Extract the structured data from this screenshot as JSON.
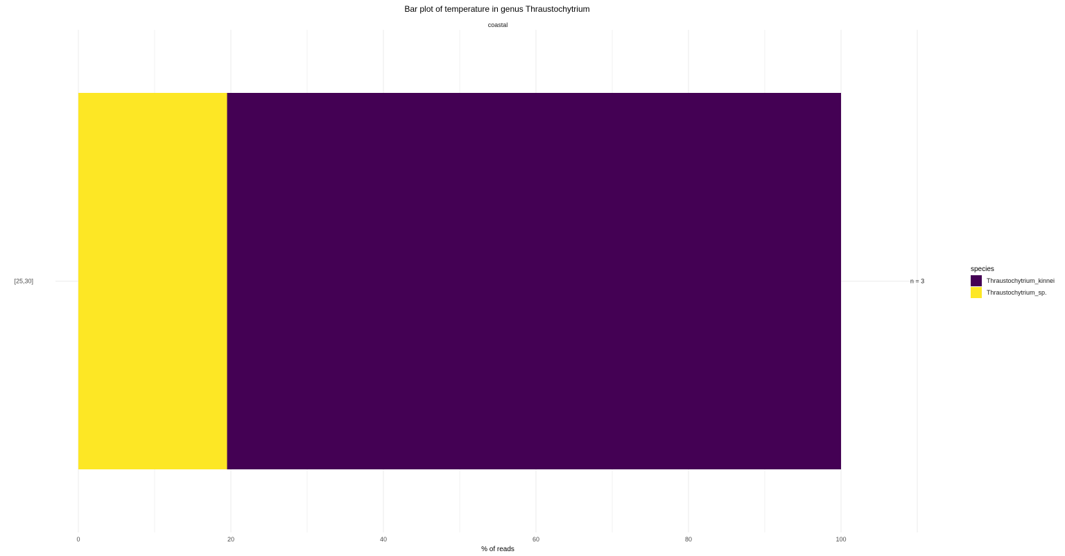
{
  "chart_data": {
    "type": "bar",
    "orientation": "horizontal",
    "stacked": true,
    "title": "Bar plot of temperature in genus Thraustochytrium",
    "facet": "coastal",
    "xlabel": "% of reads",
    "ylabel": "",
    "xlim": [
      0,
      110
    ],
    "x_ticks": [
      0,
      20,
      40,
      60,
      80,
      100
    ],
    "categories": [
      "[25,30]"
    ],
    "category_annotations": [
      "n = 3"
    ],
    "series": [
      {
        "name": "Thraustochytrium_sp.",
        "values": [
          19.5
        ],
        "color": "#FDE725"
      },
      {
        "name": "Thraustochytrium_kinnei",
        "values": [
          80.5
        ],
        "color": "#440154"
      }
    ],
    "legend": {
      "title": "species",
      "position": "right",
      "entries": [
        {
          "label": "Thraustochytrium_kinnei",
          "color": "#440154"
        },
        {
          "label": "Thraustochytrium_sp.",
          "color": "#FDE725"
        }
      ]
    },
    "grid": true
  }
}
